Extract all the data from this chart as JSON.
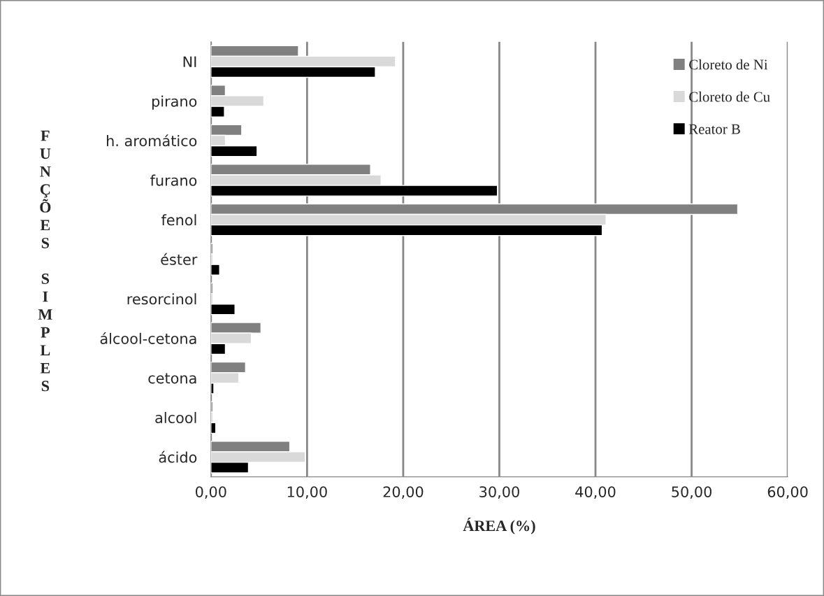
{
  "chart_data": {
    "type": "bar",
    "orientation": "horizontal",
    "xlabel": "ÁREA (%)",
    "ylabel": "FUNÇÕES SIMPLES",
    "categories": [
      "NI",
      "pirano",
      "h. aromático",
      "furano",
      "fenol",
      "éster",
      "resorcinol",
      "álcool-cetona",
      "cetona",
      "alcool",
      "ácido"
    ],
    "series": [
      {
        "name": "Cloreto de Ni",
        "color": "#808080",
        "values": [
          9.1,
          1.5,
          3.2,
          16.6,
          54.8,
          0.2,
          0.2,
          5.2,
          3.6,
          0.2,
          8.2
        ]
      },
      {
        "name": "Cloreto de Cu",
        "color": "#d9d9d9",
        "values": [
          19.2,
          5.5,
          1.5,
          17.7,
          41.1,
          0.2,
          0.2,
          4.2,
          2.9,
          0.2,
          9.8
        ]
      },
      {
        "name": "Reator B",
        "color": "#000000",
        "values": [
          17.1,
          1.4,
          4.8,
          29.8,
          40.7,
          0.9,
          2.5,
          1.5,
          0.3,
          0.5,
          3.9
        ]
      }
    ],
    "xlim": [
      0,
      60
    ],
    "xticks": [
      {
        "value": 0,
        "label": "0,00"
      },
      {
        "value": 10,
        "label": "10,00"
      },
      {
        "value": 20,
        "label": "20,00"
      },
      {
        "value": 30,
        "label": "30,00"
      },
      {
        "value": 40,
        "label": "40,00"
      },
      {
        "value": 50,
        "label": "50,00"
      },
      {
        "value": 60,
        "label": "60,00"
      }
    ],
    "grid": "x",
    "legend": "top right"
  }
}
